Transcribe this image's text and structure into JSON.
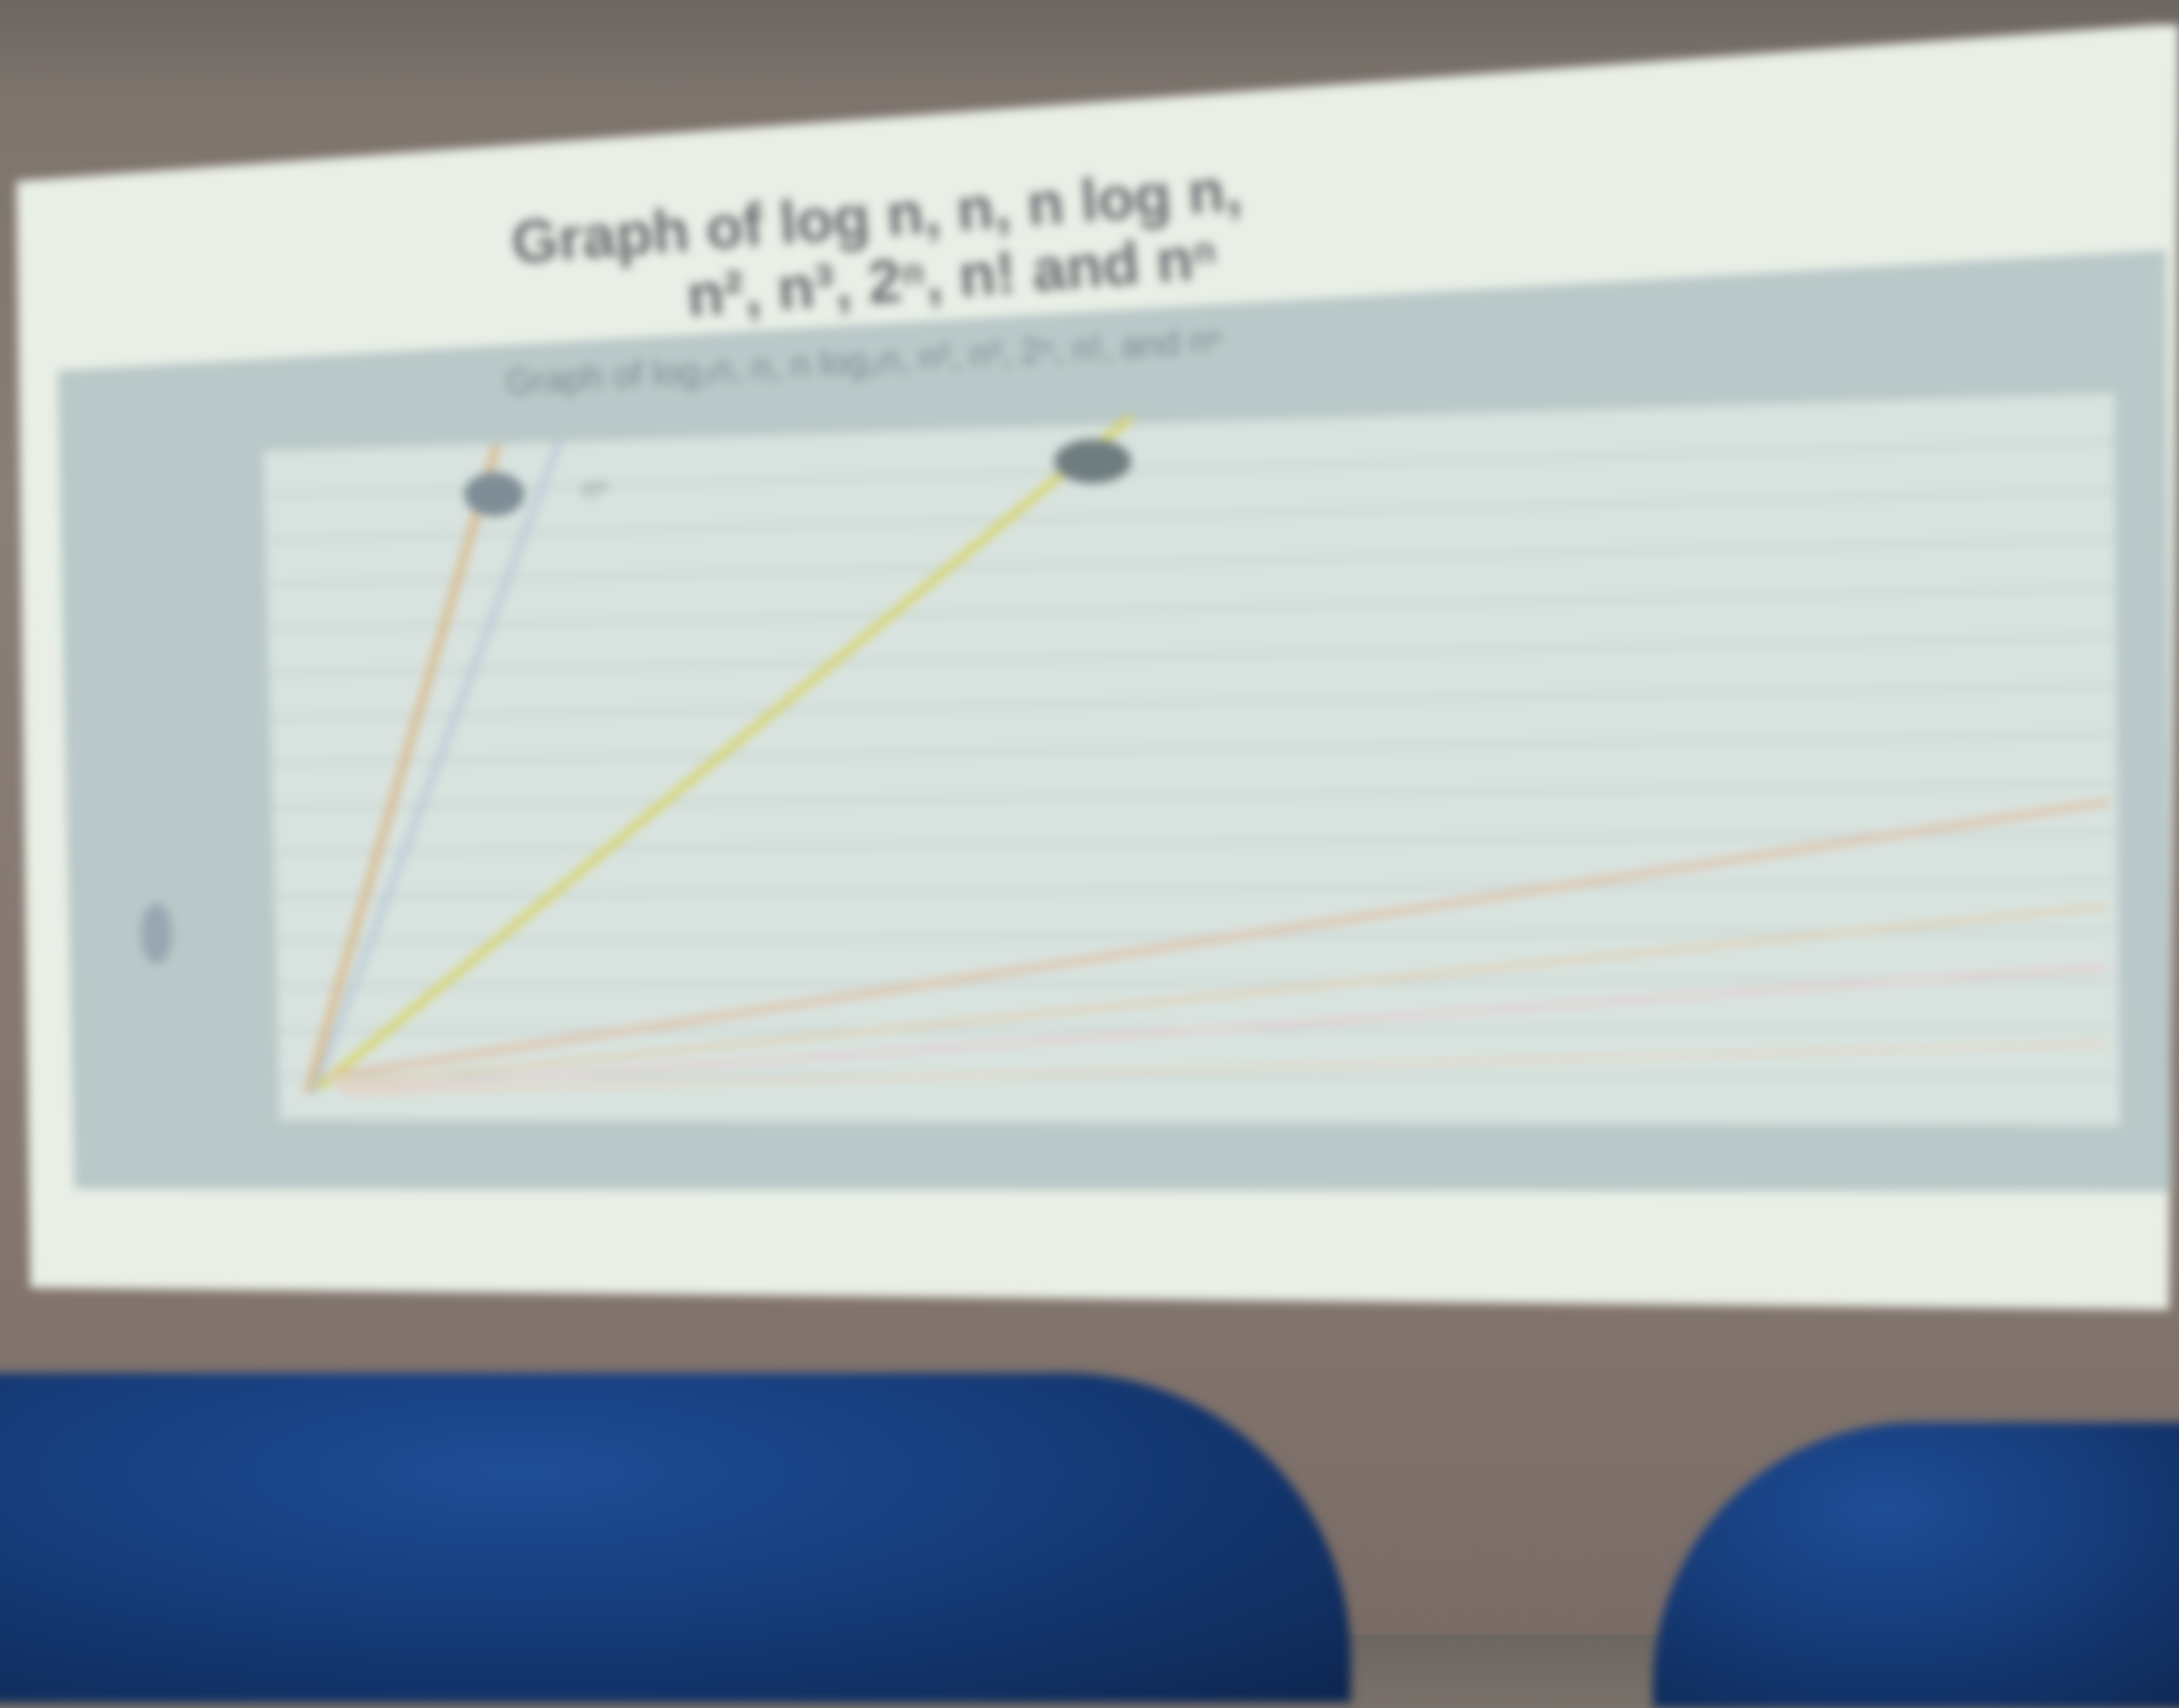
{
  "slide": {
    "title_line1": "Graph of log n, n, n log n,",
    "title_line2": "n², n³, 2ⁿ, n! and nⁿ",
    "chart_title": "Graph of log₂n, n, n log₂n, n², n³, 2ⁿ, n!, and nⁿ",
    "curve_label_upper": "nⁿ"
  },
  "colors": {
    "slide_bg": "#e9efe6",
    "plot_frame": "#b7c6c7",
    "plot_bg": "#d6e1de",
    "line_nn": "#d9b98a",
    "line_fact": "#b9c9d6",
    "line_2n": "#d8d46a",
    "line_n3": "#e3c6b0",
    "line_n2": "#dfd2b6",
    "line_nlogn": "#e5cfd0",
    "line_n": "#e2d7c4",
    "seat": "#163c7a"
  },
  "icons": [
    "seat-back"
  ]
}
